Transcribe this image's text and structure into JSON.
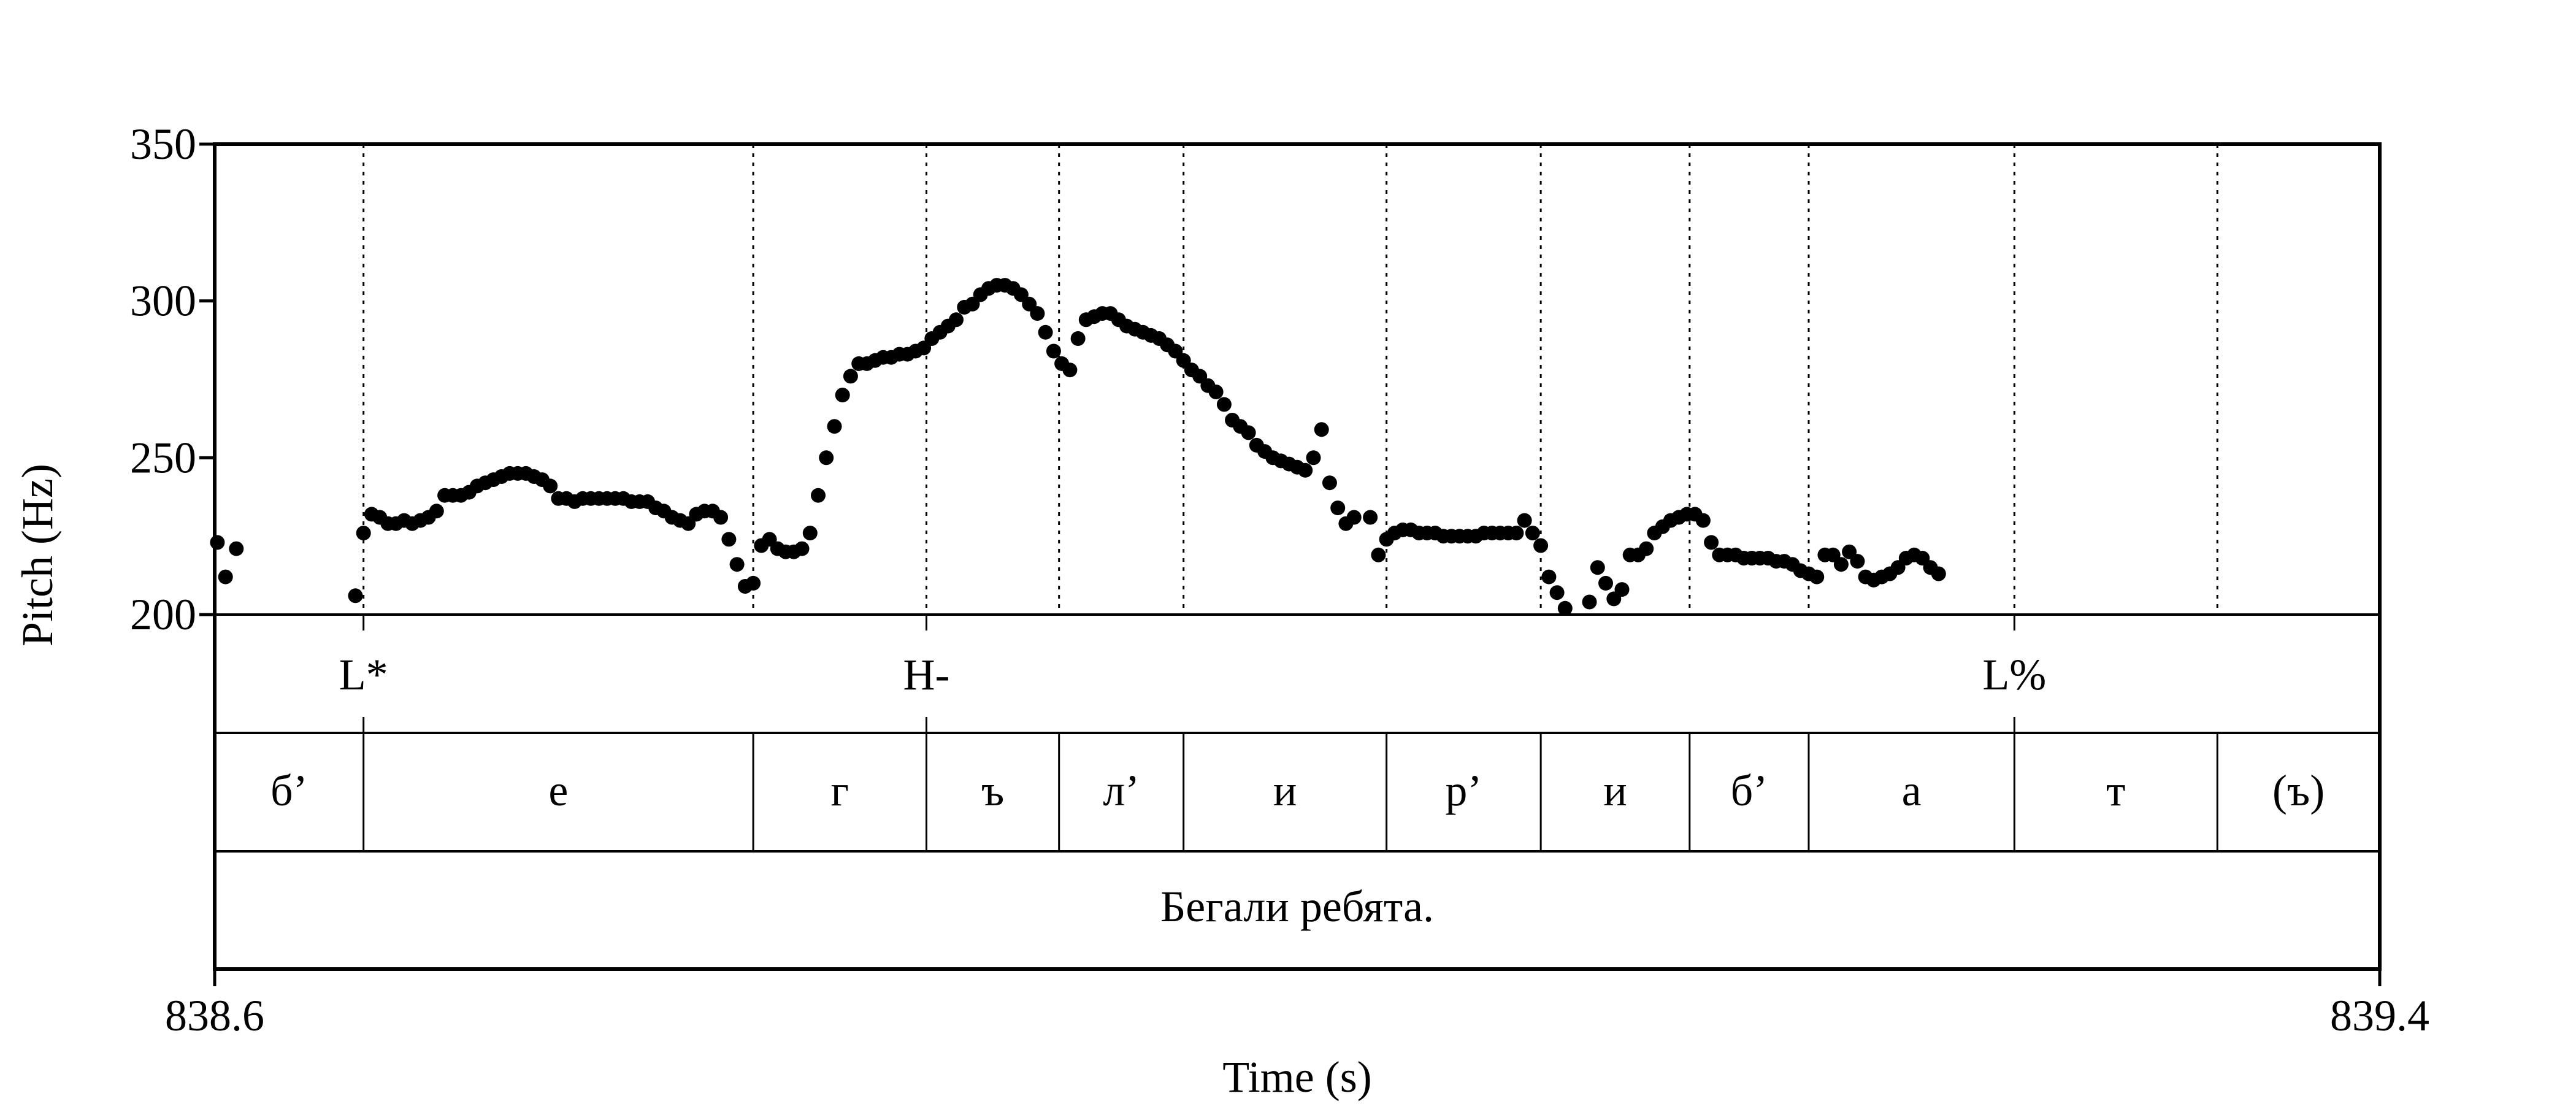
{
  "chart_data": {
    "type": "scatter",
    "title": "",
    "xlabel": "Time (s)",
    "ylabel": "Pitch (Hz)",
    "xlim": [
      838.6,
      839.4
    ],
    "ylim": [
      200,
      350
    ],
    "x_ticks": [
      "838.6",
      "839.4"
    ],
    "y_ticks": [
      "350",
      "300",
      "250",
      "200"
    ],
    "grid": false,
    "boundaries": [
      838.655,
      838.799,
      838.863,
      838.912,
      838.958,
      839.033,
      839.09,
      839.145,
      839.189,
      839.265,
      839.34
    ],
    "tones": [
      {
        "label": "L*",
        "time": 838.655
      },
      {
        "label": "H-",
        "time": 838.863
      },
      {
        "label": "L%",
        "time": 839.265
      }
    ],
    "segments": [
      {
        "label": "б’",
        "start": 838.6,
        "end": 838.655
      },
      {
        "label": "е",
        "start": 838.655,
        "end": 838.799
      },
      {
        "label": "г",
        "start": 838.799,
        "end": 838.863
      },
      {
        "label": "ъ",
        "start": 838.863,
        "end": 838.912
      },
      {
        "label": "л’",
        "start": 838.912,
        "end": 838.958
      },
      {
        "label": "и",
        "start": 838.958,
        "end": 839.033
      },
      {
        "label": "р’",
        "start": 839.033,
        "end": 839.09
      },
      {
        "label": "и",
        "start": 839.09,
        "end": 839.145
      },
      {
        "label": "б’",
        "start": 839.145,
        "end": 839.189
      },
      {
        "label": "а",
        "start": 839.189,
        "end": 839.265
      },
      {
        "label": "т",
        "start": 839.265,
        "end": 839.34
      },
      {
        "label": "(ъ)",
        "start": 839.34,
        "end": 839.4
      }
    ],
    "sentence": "Бегали ребята.",
    "series": [
      {
        "points": [
          [
            838.601,
            223
          ],
          [
            838.604,
            212
          ],
          [
            838.608,
            221
          ],
          [
            838.652,
            206
          ],
          [
            838.655,
            226
          ],
          [
            838.658,
            232
          ],
          [
            838.661,
            231
          ],
          [
            838.664,
            229
          ],
          [
            838.667,
            229
          ],
          [
            838.67,
            230
          ],
          [
            838.673,
            229
          ],
          [
            838.676,
            230
          ],
          [
            838.679,
            231
          ],
          [
            838.682,
            233
          ],
          [
            838.685,
            238
          ],
          [
            838.688,
            238
          ],
          [
            838.691,
            238
          ],
          [
            838.694,
            239
          ],
          [
            838.697,
            241
          ],
          [
            838.7,
            242
          ],
          [
            838.703,
            243
          ],
          [
            838.706,
            244
          ],
          [
            838.709,
            245
          ],
          [
            838.712,
            245
          ],
          [
            838.715,
            245
          ],
          [
            838.718,
            244
          ],
          [
            838.721,
            243
          ],
          [
            838.724,
            241
          ],
          [
            838.727,
            237
          ],
          [
            838.73,
            237
          ],
          [
            838.733,
            236
          ],
          [
            838.736,
            237
          ],
          [
            838.739,
            237
          ],
          [
            838.742,
            237
          ],
          [
            838.745,
            237
          ],
          [
            838.748,
            237
          ],
          [
            838.751,
            237
          ],
          [
            838.754,
            236
          ],
          [
            838.757,
            236
          ],
          [
            838.76,
            236
          ],
          [
            838.763,
            234
          ],
          [
            838.766,
            233
          ],
          [
            838.769,
            231
          ],
          [
            838.772,
            230
          ],
          [
            838.775,
            229
          ],
          [
            838.778,
            232
          ],
          [
            838.781,
            233
          ],
          [
            838.784,
            233
          ],
          [
            838.787,
            231
          ],
          [
            838.79,
            224
          ],
          [
            838.793,
            216
          ],
          [
            838.796,
            209
          ],
          [
            838.799,
            210
          ],
          [
            838.802,
            222
          ],
          [
            838.805,
            224
          ],
          [
            838.808,
            221
          ],
          [
            838.811,
            220
          ],
          [
            838.814,
            220
          ],
          [
            838.817,
            221
          ],
          [
            838.82,
            226
          ],
          [
            838.823,
            238
          ],
          [
            838.826,
            250
          ],
          [
            838.829,
            260
          ],
          [
            838.832,
            270
          ],
          [
            838.835,
            276
          ],
          [
            838.838,
            280
          ],
          [
            838.841,
            280
          ],
          [
            838.844,
            281
          ],
          [
            838.847,
            282
          ],
          [
            838.85,
            282
          ],
          [
            838.853,
            283
          ],
          [
            838.856,
            283
          ],
          [
            838.859,
            284
          ],
          [
            838.862,
            285
          ],
          [
            838.865,
            288
          ],
          [
            838.868,
            290
          ],
          [
            838.871,
            292
          ],
          [
            838.874,
            294
          ],
          [
            838.877,
            298
          ],
          [
            838.88,
            299
          ],
          [
            838.883,
            302
          ],
          [
            838.886,
            304
          ],
          [
            838.889,
            305
          ],
          [
            838.892,
            305
          ],
          [
            838.895,
            304
          ],
          [
            838.898,
            302
          ],
          [
            838.901,
            299
          ],
          [
            838.904,
            296
          ],
          [
            838.907,
            290
          ],
          [
            838.91,
            284
          ],
          [
            838.913,
            280
          ],
          [
            838.916,
            278
          ],
          [
            838.919,
            288
          ],
          [
            838.922,
            294
          ],
          [
            838.925,
            295
          ],
          [
            838.928,
            296
          ],
          [
            838.931,
            296
          ],
          [
            838.934,
            294
          ],
          [
            838.937,
            292
          ],
          [
            838.94,
            291
          ],
          [
            838.943,
            290
          ],
          [
            838.946,
            289
          ],
          [
            838.949,
            288
          ],
          [
            838.952,
            286
          ],
          [
            838.955,
            284
          ],
          [
            838.958,
            281
          ],
          [
            838.961,
            278
          ],
          [
            838.964,
            276
          ],
          [
            838.967,
            273
          ],
          [
            838.97,
            271
          ],
          [
            838.973,
            267
          ],
          [
            838.976,
            262
          ],
          [
            838.979,
            260
          ],
          [
            838.982,
            258
          ],
          [
            838.985,
            254
          ],
          [
            838.988,
            252
          ],
          [
            838.991,
            250
          ],
          [
            838.994,
            249
          ],
          [
            838.997,
            248
          ],
          [
            839.0,
            247
          ],
          [
            839.003,
            246
          ],
          [
            839.006,
            250
          ],
          [
            839.009,
            259
          ],
          [
            839.012,
            242
          ],
          [
            839.015,
            234
          ],
          [
            839.018,
            229
          ],
          [
            839.021,
            231
          ],
          [
            839.027,
            231
          ],
          [
            839.03,
            219
          ],
          [
            839.033,
            224
          ],
          [
            839.036,
            226
          ],
          [
            839.039,
            227
          ],
          [
            839.042,
            227
          ],
          [
            839.045,
            226
          ],
          [
            839.048,
            226
          ],
          [
            839.051,
            226
          ],
          [
            839.054,
            225
          ],
          [
            839.057,
            225
          ],
          [
            839.06,
            225
          ],
          [
            839.063,
            225
          ],
          [
            839.066,
            225
          ],
          [
            839.069,
            226
          ],
          [
            839.072,
            226
          ],
          [
            839.075,
            226
          ],
          [
            839.078,
            226
          ],
          [
            839.081,
            226
          ],
          [
            839.084,
            230
          ],
          [
            839.087,
            226
          ],
          [
            839.09,
            222
          ],
          [
            839.093,
            212
          ],
          [
            839.096,
            207
          ],
          [
            839.099,
            202
          ],
          [
            839.108,
            204
          ],
          [
            839.111,
            215
          ],
          [
            839.114,
            210
          ],
          [
            839.117,
            205
          ],
          [
            839.12,
            208
          ],
          [
            839.123,
            219
          ],
          [
            839.126,
            219
          ],
          [
            839.129,
            221
          ],
          [
            839.132,
            226
          ],
          [
            839.135,
            228
          ],
          [
            839.138,
            230
          ],
          [
            839.141,
            231
          ],
          [
            839.144,
            232
          ],
          [
            839.147,
            232
          ],
          [
            839.15,
            230
          ],
          [
            839.153,
            223
          ],
          [
            839.156,
            219
          ],
          [
            839.159,
            219
          ],
          [
            839.162,
            219
          ],
          [
            839.165,
            218
          ],
          [
            839.168,
            218
          ],
          [
            839.171,
            218
          ],
          [
            839.174,
            218
          ],
          [
            839.177,
            217
          ],
          [
            839.18,
            217
          ],
          [
            839.183,
            216
          ],
          [
            839.186,
            214
          ],
          [
            839.189,
            213
          ],
          [
            839.192,
            212
          ],
          [
            839.195,
            219
          ],
          [
            839.198,
            219
          ],
          [
            839.201,
            216
          ],
          [
            839.204,
            220
          ],
          [
            839.207,
            217
          ],
          [
            839.21,
            212
          ],
          [
            839.213,
            211
          ],
          [
            839.216,
            212
          ],
          [
            839.219,
            213
          ],
          [
            839.222,
            215
          ],
          [
            839.225,
            218
          ],
          [
            839.228,
            219
          ],
          [
            839.231,
            218
          ],
          [
            839.234,
            215
          ],
          [
            839.237,
            213
          ]
        ]
      }
    ]
  }
}
